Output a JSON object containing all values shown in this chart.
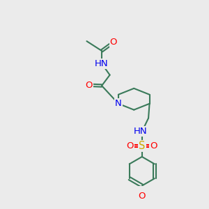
{
  "background_color": "#ebebeb",
  "bond_color": "#3a7a5a",
  "atom_colors": {
    "O": "#ff0000",
    "N": "#0000ee",
    "S": "#ccaa00",
    "H": "#778877",
    "C": "#3a7a5a"
  },
  "figsize": [
    3.0,
    3.0
  ],
  "dpi": 100
}
